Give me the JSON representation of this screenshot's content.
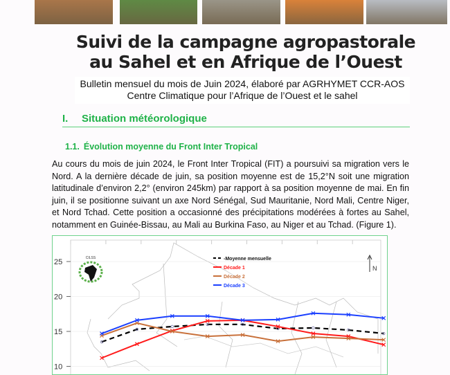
{
  "header": {
    "photos": [
      {
        "name": "soil-photo",
        "color": "#a9764a"
      },
      {
        "name": "grass-water-photo",
        "color": "#5f8a45"
      },
      {
        "name": "cattle-photo",
        "color": "#9a9588"
      },
      {
        "name": "bushfire-photo",
        "color": "#d9823a"
      },
      {
        "name": "grain-sacks-photo",
        "color": "#b8bcc2"
      }
    ],
    "title_line1": "Suivi de la campagne agropastorale",
    "title_line2": "au Sahel et en Afrique de l’Ouest",
    "subtitle_line1": "Bulletin mensuel du mois de Juin 2024, élaboré par AGRHYMET CCR-AOS",
    "subtitle_line2": "Centre Climatique pour l’Afrique de l’Ouest et le sahel"
  },
  "section": {
    "number": "I.",
    "title": "Situation météorologique",
    "subsection_number": "1.1.",
    "subsection_title": "Évolution moyenne du Front Inter Tropical",
    "paragraph": "Au cours du mois de juin 2024, le Front Inter Tropical (FIT) a poursuivi sa migration vers le Nord. A la dernière décade de juin, sa position moyenne est de 15,2°N soit une migration latitudinale d’environ 2,2° (environ 245km) par rapport à sa position moyenne de mai. En fin juin, il se positionne suivant un axe Nord Sénégal, Sud Mauritanie, Nord Mali, Centre Niger, et Nord Tchad. Cette position a occasionné des précipitations modérées à fortes au Sahel, notamment en Guinée-Bissau, au Mali au Burkina Faso, au Niger et au Tchad. (Figure 1)."
  },
  "figure": {
    "logo_text": "CILSS",
    "north_label": "N"
  },
  "chart_data": {
    "type": "line",
    "background": "map of West Africa",
    "y_ticks": [
      "25",
      "20",
      "15",
      "10"
    ],
    "ylim": [
      9.5,
      27
    ],
    "grid": true,
    "legend_position": "top-center",
    "series": [
      {
        "name": "-Moyenne mensuelle",
        "color": "#000000",
        "dash": true,
        "values": [
          13.5,
          15.3,
          15.7,
          16.0,
          16.0,
          15.4,
          15.5,
          15.2,
          14.7
        ]
      },
      {
        "name": "Décade 1",
        "color": "#ff1a1a",
        "values": [
          11.2,
          13.2,
          15.1,
          16.5,
          16.6,
          15.7,
          14.7,
          14.3,
          13.1
        ]
      },
      {
        "name": "Décade 2",
        "color": "#c8703a",
        "values": [
          14.4,
          16.2,
          15.0,
          14.3,
          14.5,
          13.6,
          14.2,
          14.0,
          13.8
        ]
      },
      {
        "name": "Décade 3",
        "color": "#1a3fff",
        "values": [
          14.7,
          16.6,
          17.2,
          17.2,
          16.6,
          16.7,
          17.6,
          17.4,
          16.9
        ]
      }
    ]
  }
}
